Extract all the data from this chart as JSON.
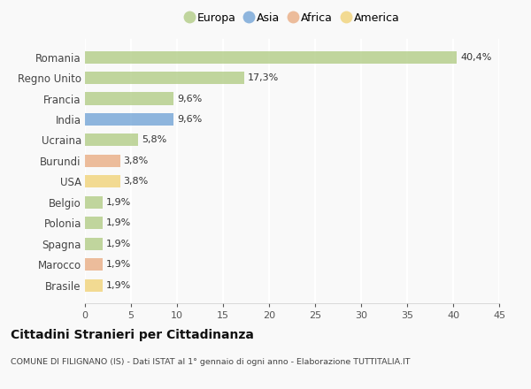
{
  "countries": [
    "Romania",
    "Regno Unito",
    "Francia",
    "India",
    "Ucraina",
    "Burundi",
    "USA",
    "Belgio",
    "Polonia",
    "Spagna",
    "Marocco",
    "Brasile"
  ],
  "values": [
    40.4,
    17.3,
    9.6,
    9.6,
    5.8,
    3.8,
    3.8,
    1.9,
    1.9,
    1.9,
    1.9,
    1.9
  ],
  "continents": [
    "Europa",
    "Europa",
    "Europa",
    "Asia",
    "Europa",
    "Africa",
    "America",
    "Europa",
    "Europa",
    "Europa",
    "Africa",
    "America"
  ],
  "colors": {
    "Europa": "#adc97f",
    "Asia": "#6b9fd4",
    "Africa": "#e8a87c",
    "America": "#f0d070"
  },
  "title": "Cittadini Stranieri per Cittadinanza",
  "subtitle": "COMUNE DI FILIGNANO (IS) - Dati ISTAT al 1° gennaio di ogni anno - Elaborazione TUTTITALIA.IT",
  "xlim": [
    0,
    45
  ],
  "xticks": [
    0,
    5,
    10,
    15,
    20,
    25,
    30,
    35,
    40,
    45
  ],
  "background_color": "#f9f9f9",
  "bar_alpha": 0.75,
  "legend_order": [
    "Europa",
    "Asia",
    "Africa",
    "America"
  ]
}
